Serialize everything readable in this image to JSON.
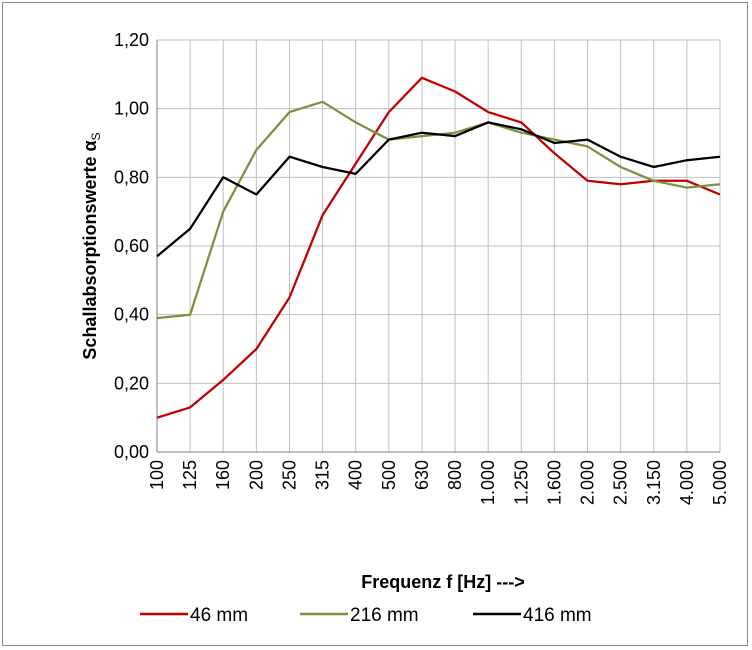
{
  "chart_data": {
    "type": "line",
    "categories": [
      "100",
      "125",
      "160",
      "200",
      "250",
      "315",
      "400",
      "500",
      "630",
      "800",
      "1.000",
      "1.250",
      "1.600",
      "2.000",
      "2.500",
      "3.150",
      "4.000",
      "5.000"
    ],
    "series": [
      {
        "name": "46 mm",
        "color": "#c00000",
        "values": [
          0.1,
          0.13,
          0.21,
          0.3,
          0.45,
          0.69,
          0.84,
          0.99,
          1.09,
          1.05,
          0.99,
          0.96,
          0.87,
          0.79,
          0.78,
          0.79,
          0.79,
          0.75
        ]
      },
      {
        "name": "216 mm",
        "color": "#77933c",
        "values": [
          0.39,
          0.4,
          0.7,
          0.88,
          0.99,
          1.02,
          0.96,
          0.91,
          0.92,
          0.93,
          0.96,
          0.93,
          0.91,
          0.89,
          0.83,
          0.79,
          0.77,
          0.78
        ]
      },
      {
        "name": "416 mm",
        "color": "#000000",
        "values": [
          0.57,
          0.65,
          0.8,
          0.75,
          0.86,
          0.83,
          0.81,
          0.91,
          0.93,
          0.92,
          0.96,
          0.94,
          0.9,
          0.91,
          0.86,
          0.83,
          0.85,
          0.86
        ]
      }
    ],
    "y_ticks": [
      "0,00",
      "0,20",
      "0,40",
      "0,60",
      "0,80",
      "1,00",
      "1,20"
    ],
    "ylim": [
      0,
      1.2
    ],
    "ylabel": "Schallabsorptionswerte",
    "ylabel_symbol": "α",
    "ylabel_subscript": "S",
    "xlabel": "Frequenz f  [Hz]  --->",
    "grid": true,
    "legend_position": "bottom"
  }
}
